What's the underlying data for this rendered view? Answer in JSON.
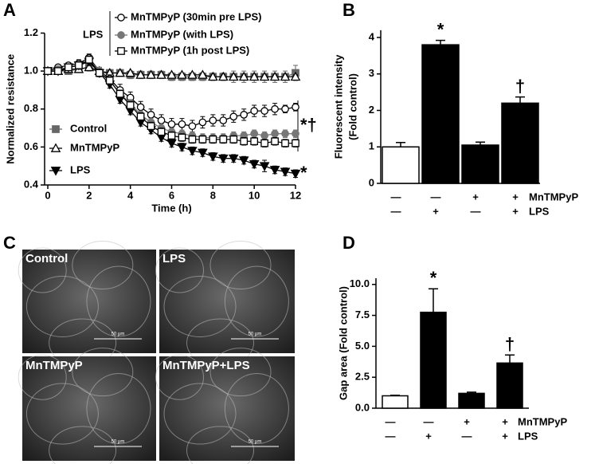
{
  "chart_data": [
    {
      "type": "line",
      "panel_label": "A",
      "xlabel": "Time (h)",
      "ylabel": "Normalized resistance",
      "x": [
        0,
        0.5,
        1,
        1.5,
        2,
        2.5,
        3,
        3.5,
        4,
        4.5,
        5,
        5.5,
        6,
        6.5,
        7,
        7.5,
        8,
        8.5,
        9,
        9.5,
        10,
        10.5,
        11,
        11.5,
        12
      ],
      "xlim": [
        0,
        12
      ],
      "xticks": [
        0,
        2,
        4,
        6,
        8,
        10,
        12
      ],
      "ylim": [
        0.4,
        1.2
      ],
      "yticks": [
        0.4,
        0.6,
        0.8,
        {
          "value": 1,
          "label": "1.0"
        },
        1.2
      ],
      "legend_group_label": "LPS",
      "annotations": [
        "*†",
        "*"
      ],
      "series": [
        {
          "name": "Control",
          "color": "#666666",
          "marker": "square",
          "marker_fill": "#666666",
          "values": [
            1.0,
            1.0,
            1.0,
            1.01,
            1.02,
            0.99,
            0.99,
            0.99,
            0.98,
            0.98,
            0.98,
            0.98,
            0.97,
            0.97,
            0.97,
            0.97,
            0.97,
            0.97,
            0.97,
            0.97,
            0.97,
            0.97,
            0.97,
            0.97,
            0.99
          ],
          "errors": [
            0.01,
            0.01,
            0.01,
            0.01,
            0.02,
            0.01,
            0.01,
            0.01,
            0.02,
            0.02,
            0.02,
            0.02,
            0.02,
            0.02,
            0.02,
            0.02,
            0.02,
            0.02,
            0.03,
            0.03,
            0.03,
            0.03,
            0.03,
            0.03,
            0.04
          ]
        },
        {
          "name": "MnTMPyP",
          "color": "#000000",
          "marker": "triangle",
          "marker_fill": "#ffffff",
          "values": [
            1.0,
            1.0,
            1.01,
            1.01,
            1.02,
            1.0,
            0.99,
            0.99,
            0.99,
            0.98,
            0.98,
            0.98,
            0.98,
            0.98,
            0.98,
            0.98,
            0.97,
            0.97,
            0.97,
            0.97,
            0.97,
            0.97,
            0.97,
            0.97,
            0.97
          ],
          "errors": [
            0.01,
            0.01,
            0.01,
            0.01,
            0.01,
            0.01,
            0.01,
            0.01,
            0.01,
            0.01,
            0.01,
            0.01,
            0.01,
            0.01,
            0.01,
            0.01,
            0.01,
            0.01,
            0.01,
            0.01,
            0.01,
            0.01,
            0.01,
            0.01,
            0.01
          ]
        },
        {
          "name": "LPS",
          "color": "#000000",
          "marker": "triangle-down",
          "marker_fill": "#000000",
          "values": [
            1.0,
            1.0,
            1.02,
            1.03,
            1.05,
            0.99,
            0.93,
            0.85,
            0.79,
            0.73,
            0.69,
            0.65,
            0.62,
            0.6,
            0.58,
            0.57,
            0.55,
            0.54,
            0.54,
            0.53,
            0.51,
            0.5,
            0.48,
            0.47,
            0.46
          ],
          "errors": [
            0.01,
            0.01,
            0.01,
            0.01,
            0.02,
            0.01,
            0.02,
            0.02,
            0.02,
            0.02,
            0.02,
            0.02,
            0.02,
            0.02,
            0.02,
            0.02,
            0.02,
            0.02,
            0.02,
            0.02,
            0.02,
            0.03,
            0.02,
            0.02,
            0.02
          ]
        },
        {
          "name": "MnTMPyP (30min pre LPS)",
          "color": "#000000",
          "marker": "circle",
          "marker_fill": "#ffffff",
          "values": [
            1.0,
            1.02,
            1.03,
            1.04,
            1.07,
            1.0,
            0.96,
            0.9,
            0.86,
            0.81,
            0.77,
            0.74,
            0.72,
            0.72,
            0.71,
            0.73,
            0.74,
            0.74,
            0.76,
            0.77,
            0.79,
            0.79,
            0.8,
            0.8,
            0.81
          ],
          "errors": [
            0.01,
            0.01,
            0.01,
            0.02,
            0.02,
            0.02,
            0.02,
            0.03,
            0.03,
            0.03,
            0.03,
            0.03,
            0.03,
            0.03,
            0.03,
            0.03,
            0.03,
            0.03,
            0.03,
            0.03,
            0.03,
            0.03,
            0.03,
            0.02,
            0.02
          ]
        },
        {
          "name": "MnTMPyP (with LPS)",
          "color": "#777777",
          "marker": "circle",
          "marker_fill": "#777777",
          "values": [
            1.0,
            1.01,
            1.02,
            1.03,
            1.06,
            1.0,
            0.95,
            0.88,
            0.83,
            0.77,
            0.73,
            0.7,
            0.68,
            0.67,
            0.66,
            0.65,
            0.65,
            0.65,
            0.66,
            0.66,
            0.67,
            0.66,
            0.67,
            0.67,
            0.67
          ],
          "errors": [
            0.01,
            0.01,
            0.01,
            0.02,
            0.02,
            0.02,
            0.02,
            0.02,
            0.02,
            0.02,
            0.02,
            0.02,
            0.02,
            0.02,
            0.02,
            0.02,
            0.02,
            0.02,
            0.02,
            0.02,
            0.02,
            0.02,
            0.02,
            0.02,
            0.02
          ]
        },
        {
          "name": "MnTMPyP (1h post LPS)",
          "color": "#000000",
          "marker": "square",
          "marker_fill": "#ffffff",
          "values": [
            1.0,
            1.0,
            1.02,
            1.03,
            1.06,
            0.99,
            0.95,
            0.88,
            0.82,
            0.76,
            0.71,
            0.68,
            0.66,
            0.65,
            0.64,
            0.64,
            0.64,
            0.64,
            0.64,
            0.63,
            0.63,
            0.62,
            0.63,
            0.62,
            0.62
          ],
          "errors": [
            0.01,
            0.01,
            0.01,
            0.02,
            0.02,
            0.02,
            0.02,
            0.02,
            0.02,
            0.02,
            0.02,
            0.02,
            0.02,
            0.02,
            0.02,
            0.02,
            0.02,
            0.02,
            0.02,
            0.02,
            0.02,
            0.02,
            0.02,
            0.02,
            0.02
          ]
        }
      ]
    },
    {
      "type": "bar",
      "panel_label": "B",
      "ylabel": [
        "Fluorescent intensity",
        "(Fold control)"
      ],
      "values": [
        1.0,
        3.8,
        1.05,
        2.2
      ],
      "errors": [
        0.12,
        0.12,
        0.08,
        0.17
      ],
      "colors": [
        "#ffffff",
        "#000000",
        "#000000",
        "#000000"
      ],
      "bar_marks": [
        null,
        "*",
        null,
        "†"
      ],
      "ylim": [
        0,
        4.2
      ],
      "yticks": [
        0,
        1,
        2,
        3,
        4
      ],
      "treatments": [
        {
          "name": "MnTMPyP",
          "marks": [
            "—",
            "—",
            "+",
            "+"
          ]
        },
        {
          "name": "LPS",
          "marks": [
            "—",
            "+",
            "—",
            "+"
          ]
        }
      ]
    },
    {
      "type": "bar",
      "panel_label": "D",
      "ylabel": [
        "Gap area (Fold control)"
      ],
      "values": [
        1.0,
        7.75,
        1.2,
        3.65
      ],
      "errors": [
        0.05,
        1.9,
        0.1,
        0.65
      ],
      "colors": [
        "#ffffff",
        "#000000",
        "#000000",
        "#000000"
      ],
      "bar_marks": [
        null,
        "*",
        null,
        "†"
      ],
      "ylim": [
        0,
        10.5
      ],
      "yticks": [
        {
          "value": 0,
          "label": "0.0"
        },
        2.5,
        {
          "value": 5,
          "label": "5.0"
        },
        7.5,
        {
          "value": 10,
          "label": "10.0"
        }
      ],
      "treatments": [
        {
          "name": "MnTMPyP",
          "marks": [
            "—",
            "—",
            "+",
            "+"
          ]
        },
        {
          "name": "LPS",
          "marks": [
            "—",
            "+",
            "—",
            "+"
          ]
        }
      ]
    }
  ],
  "micrographs": {
    "panel_label": "C",
    "images": [
      {
        "label": "Control",
        "scale_bar": "50 μm"
      },
      {
        "label": "LPS",
        "scale_bar": "50 μm"
      },
      {
        "label": "MnTMPyP",
        "scale_bar": "50 μm"
      },
      {
        "label": "MnTMPyP+LPS",
        "scale_bar": "50 μm"
      }
    ]
  }
}
